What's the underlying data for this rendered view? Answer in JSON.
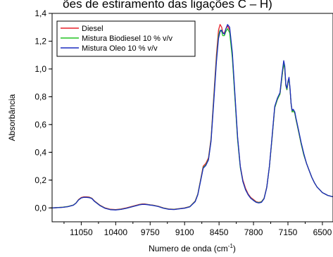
{
  "chart_data": {
    "type": "line",
    "title": "ões de estiramento das ligações C – H)",
    "xlabel": "Numero de onda (cm",
    "xlabel_sup": "-1",
    "xlabel_suffix": ")",
    "ylabel": "Absorbância",
    "xlim": [
      11600,
      6300
    ],
    "ylim": [
      -0.1,
      1.4
    ],
    "x_reversed": true,
    "x_ticks": [
      11050,
      10400,
      9750,
      9100,
      8450,
      7800,
      7150,
      6500
    ],
    "y_ticks": [
      0.0,
      0.2,
      0.4,
      0.6,
      0.8,
      1.0,
      1.2,
      1.4
    ],
    "y_tick_labels": [
      "0,0",
      "0,2",
      "0,4",
      "0,6",
      "0,8",
      "1,0",
      "1,2",
      "1,4"
    ],
    "legend_position": "top-left",
    "grid": false,
    "series": [
      {
        "name": "Diesel",
        "color": "#e8202a",
        "x": [
          11600,
          11400,
          11300,
          11200,
          11150,
          11100,
          11050,
          11000,
          10950,
          10900,
          10850,
          10800,
          10700,
          10600,
          10500,
          10400,
          10300,
          10200,
          10100,
          10000,
          9950,
          9900,
          9850,
          9800,
          9750,
          9700,
          9600,
          9500,
          9400,
          9300,
          9200,
          9100,
          9000,
          8900,
          8850,
          8800,
          8750,
          8700,
          8650,
          8600,
          8550,
          8500,
          8460,
          8430,
          8400,
          8380,
          8350,
          8320,
          8290,
          8250,
          8200,
          8150,
          8100,
          8050,
          8000,
          7950,
          7900,
          7850,
          7800,
          7750,
          7700,
          7650,
          7600,
          7550,
          7500,
          7450,
          7400,
          7350,
          7300,
          7260,
          7230,
          7210,
          7190,
          7170,
          7150,
          7130,
          7110,
          7090,
          7070,
          7050,
          7020,
          7000,
          6950,
          6900,
          6850,
          6800,
          6750,
          6700,
          6650,
          6600,
          6550,
          6500,
          6450,
          6400,
          6350,
          6300
        ],
        "y": [
          0.0,
          0.005,
          0.01,
          0.02,
          0.035,
          0.06,
          0.075,
          0.08,
          0.08,
          0.078,
          0.07,
          0.05,
          0.02,
          0.0,
          -0.01,
          -0.012,
          -0.008,
          0.0,
          0.01,
          0.02,
          0.025,
          0.028,
          0.028,
          0.025,
          0.022,
          0.02,
          0.012,
          0.0,
          -0.008,
          -0.01,
          -0.005,
          0.0,
          0.01,
          0.05,
          0.1,
          0.2,
          0.3,
          0.32,
          0.36,
          0.5,
          0.8,
          1.1,
          1.28,
          1.32,
          1.3,
          1.26,
          1.26,
          1.29,
          1.31,
          1.28,
          1.1,
          0.8,
          0.5,
          0.3,
          0.2,
          0.14,
          0.1,
          0.075,
          0.06,
          0.045,
          0.04,
          0.045,
          0.07,
          0.15,
          0.3,
          0.5,
          0.72,
          0.78,
          0.82,
          0.95,
          1.04,
          1.0,
          0.88,
          0.85,
          0.9,
          0.93,
          0.85,
          0.75,
          0.69,
          0.7,
          0.68,
          0.64,
          0.55,
          0.46,
          0.38,
          0.32,
          0.27,
          0.22,
          0.18,
          0.15,
          0.13,
          0.11,
          0.1,
          0.09,
          0.085,
          0.08
        ]
      },
      {
        "name": "Mistura Biodiesel 10 % v/v",
        "color": "#22c322",
        "x": [
          11600,
          11400,
          11300,
          11200,
          11150,
          11100,
          11050,
          11000,
          10950,
          10900,
          10850,
          10800,
          10700,
          10600,
          10500,
          10400,
          10300,
          10200,
          10100,
          10000,
          9950,
          9900,
          9850,
          9800,
          9750,
          9700,
          9600,
          9500,
          9400,
          9300,
          9200,
          9100,
          9000,
          8900,
          8850,
          8800,
          8750,
          8700,
          8650,
          8600,
          8550,
          8500,
          8460,
          8430,
          8400,
          8380,
          8350,
          8320,
          8290,
          8250,
          8200,
          8150,
          8100,
          8050,
          8000,
          7950,
          7900,
          7850,
          7800,
          7750,
          7700,
          7650,
          7600,
          7550,
          7500,
          7450,
          7400,
          7350,
          7300,
          7260,
          7230,
          7210,
          7190,
          7170,
          7150,
          7130,
          7110,
          7090,
          7070,
          7050,
          7020,
          7000,
          6950,
          6900,
          6850,
          6800,
          6750,
          6700,
          6650,
          6600,
          6550,
          6500,
          6450,
          6400,
          6350,
          6300
        ],
        "y": [
          0.0,
          0.005,
          0.01,
          0.02,
          0.035,
          0.058,
          0.072,
          0.077,
          0.077,
          0.075,
          0.068,
          0.048,
          0.018,
          -0.002,
          -0.012,
          -0.014,
          -0.01,
          -0.002,
          0.008,
          0.018,
          0.023,
          0.026,
          0.026,
          0.024,
          0.021,
          0.019,
          0.011,
          -0.001,
          -0.009,
          -0.011,
          -0.006,
          -0.001,
          0.009,
          0.048,
          0.098,
          0.195,
          0.29,
          0.31,
          0.35,
          0.49,
          0.78,
          1.07,
          1.24,
          1.28,
          1.27,
          1.24,
          1.24,
          1.27,
          1.29,
          1.26,
          1.08,
          0.79,
          0.49,
          0.29,
          0.19,
          0.13,
          0.095,
          0.07,
          0.055,
          0.042,
          0.038,
          0.043,
          0.068,
          0.148,
          0.298,
          0.5,
          0.72,
          0.78,
          0.82,
          0.95,
          1.04,
          1.0,
          0.88,
          0.85,
          0.9,
          0.93,
          0.85,
          0.75,
          0.69,
          0.7,
          0.68,
          0.64,
          0.55,
          0.46,
          0.38,
          0.32,
          0.27,
          0.22,
          0.18,
          0.15,
          0.13,
          0.11,
          0.1,
          0.09,
          0.085,
          0.08
        ]
      },
      {
        "name": "Mistura Oleo 10 % v/v",
        "color": "#1c2bbf",
        "x": [
          11600,
          11400,
          11300,
          11200,
          11150,
          11100,
          11050,
          11000,
          10950,
          10900,
          10850,
          10800,
          10700,
          10600,
          10500,
          10400,
          10300,
          10200,
          10100,
          10000,
          9950,
          9900,
          9850,
          9800,
          9750,
          9700,
          9600,
          9500,
          9400,
          9300,
          9200,
          9100,
          9000,
          8900,
          8850,
          8800,
          8750,
          8700,
          8650,
          8600,
          8550,
          8500,
          8460,
          8430,
          8400,
          8380,
          8350,
          8320,
          8290,
          8250,
          8200,
          8150,
          8100,
          8050,
          8000,
          7950,
          7900,
          7850,
          7800,
          7750,
          7700,
          7650,
          7600,
          7550,
          7500,
          7450,
          7400,
          7350,
          7300,
          7260,
          7230,
          7210,
          7190,
          7170,
          7150,
          7130,
          7110,
          7090,
          7070,
          7050,
          7020,
          7000,
          6950,
          6900,
          6850,
          6800,
          6750,
          6700,
          6650,
          6600,
          6550,
          6500,
          6450,
          6400,
          6350,
          6300
        ],
        "y": [
          0.0,
          0.004,
          0.009,
          0.019,
          0.034,
          0.057,
          0.072,
          0.076,
          0.076,
          0.074,
          0.067,
          0.047,
          0.017,
          -0.003,
          -0.013,
          -0.015,
          -0.011,
          -0.003,
          0.007,
          0.017,
          0.022,
          0.025,
          0.025,
          0.023,
          0.02,
          0.018,
          0.01,
          -0.002,
          -0.01,
          -0.012,
          -0.007,
          -0.002,
          0.008,
          0.045,
          0.095,
          0.19,
          0.285,
          0.305,
          0.345,
          0.48,
          0.76,
          1.05,
          1.22,
          1.27,
          1.28,
          1.26,
          1.25,
          1.29,
          1.32,
          1.3,
          1.12,
          0.82,
          0.51,
          0.3,
          0.19,
          0.13,
          0.094,
          0.068,
          0.053,
          0.04,
          0.036,
          0.04,
          0.066,
          0.146,
          0.3,
          0.51,
          0.73,
          0.79,
          0.83,
          0.97,
          1.06,
          1.02,
          0.89,
          0.86,
          0.91,
          0.94,
          0.86,
          0.75,
          0.7,
          0.71,
          0.69,
          0.65,
          0.56,
          0.47,
          0.39,
          0.32,
          0.27,
          0.22,
          0.18,
          0.15,
          0.13,
          0.11,
          0.1,
          0.09,
          0.085,
          0.08
        ]
      }
    ]
  }
}
